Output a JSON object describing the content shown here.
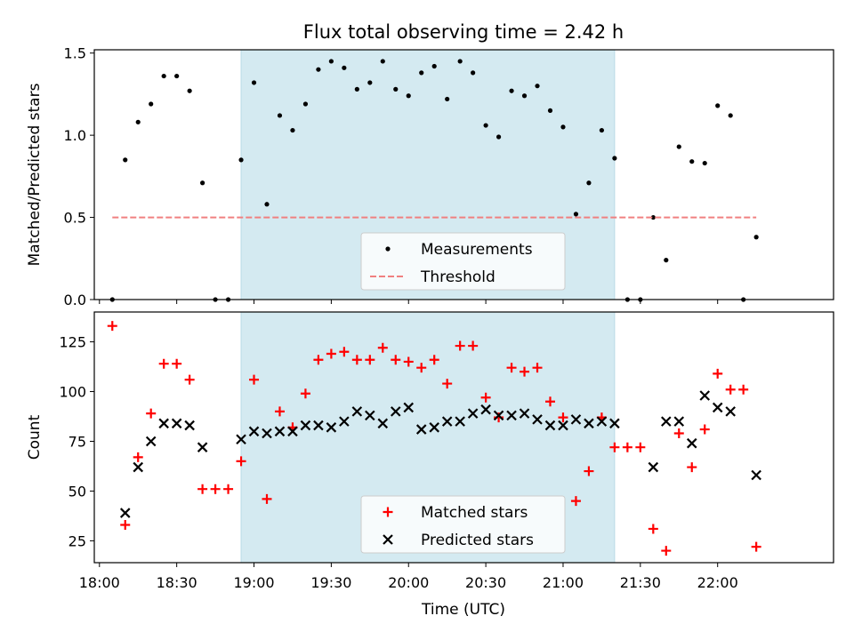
{
  "chart_data": {
    "type": "scatter",
    "title": "Flux total observing time = 2.42 h",
    "xlabel": "Time (UTC)",
    "x_range": [
      "17:58",
      "22:45"
    ],
    "x_ticks": [
      "18:00",
      "18:30",
      "19:00",
      "19:30",
      "20:00",
      "20:30",
      "21:00",
      "21:30",
      "22:00"
    ],
    "shaded_interval": [
      "18:55",
      "21:20"
    ],
    "shade_color": "#d4eaf1",
    "times": [
      "18:05",
      "18:10",
      "18:15",
      "18:20",
      "18:25",
      "18:30",
      "18:35",
      "18:40",
      "18:45",
      "18:50",
      "18:55",
      "19:00",
      "19:05",
      "19:10",
      "19:15",
      "19:20",
      "19:25",
      "19:30",
      "19:35",
      "19:40",
      "19:45",
      "19:50",
      "19:55",
      "20:00",
      "20:05",
      "20:10",
      "20:15",
      "20:20",
      "20:25",
      "20:30",
      "20:35",
      "20:40",
      "20:45",
      "20:50",
      "20:55",
      "21:00",
      "21:05",
      "21:10",
      "21:15",
      "21:20",
      "21:25",
      "21:30",
      "21:35",
      "21:40",
      "21:45",
      "21:50",
      "21:55",
      "22:00",
      "22:05",
      "22:10",
      "22:15"
    ],
    "panels": [
      {
        "ylabel": "Matched/Predicted stars",
        "ylim": [
          0,
          1.52
        ],
        "y_ticks": [
          "0.0",
          "0.5",
          "1.0",
          "1.5"
        ],
        "legend_position": "lower-center",
        "series": [
          {
            "name": "Measurements",
            "marker": "dot",
            "color": "#000000",
            "values": [
              0.0,
              0.85,
              1.08,
              1.19,
              1.36,
              1.36,
              1.27,
              0.71,
              0.0,
              0.0,
              0.85,
              1.32,
              0.58,
              1.12,
              1.03,
              1.19,
              1.4,
              1.45,
              1.41,
              1.28,
              1.32,
              1.45,
              1.28,
              1.24,
              1.38,
              1.42,
              1.22,
              1.45,
              1.38,
              1.06,
              0.99,
              1.27,
              1.24,
              1.3,
              1.15,
              1.05,
              0.52,
              0.71,
              1.03,
              0.86,
              0.0,
              0.0,
              0.5,
              0.24,
              0.93,
              0.84,
              0.83,
              1.18,
              1.12,
              0.0,
              0.38
            ]
          },
          {
            "name": "Threshold",
            "marker": "dashed-line",
            "color": "#f08080",
            "values": [
              0.5,
              0.5
            ]
          }
        ]
      },
      {
        "ylabel": "Count",
        "ylim": [
          14,
          140
        ],
        "y_ticks": [
          "25",
          "50",
          "75",
          "100",
          "125"
        ],
        "legend_position": "lower-center",
        "series": [
          {
            "name": "Matched stars",
            "marker": "plus",
            "color": "#ff0000",
            "values": [
              133,
              33,
              67,
              89,
              114,
              114,
              106,
              51,
              51,
              51,
              65,
              106,
              46,
              90,
              82,
              99,
              116,
              119,
              120,
              116,
              116,
              122,
              116,
              115,
              112,
              116,
              104,
              123,
              123,
              97,
              87,
              112,
              110,
              112,
              95,
              87,
              45,
              60,
              87,
              72,
              72,
              72,
              31,
              20,
              79,
              62,
              81,
              109,
              101,
              101,
              22
            ]
          },
          {
            "name": "Predicted stars",
            "marker": "x",
            "color": "#000000",
            "values": [
              null,
              39,
              62,
              75,
              84,
              84,
              83,
              72,
              null,
              null,
              76,
              80,
              79,
              80,
              80,
              83,
              83,
              82,
              85,
              90,
              88,
              84,
              90,
              92,
              81,
              82,
              85,
              85,
              89,
              91,
              88,
              88,
              89,
              86,
              83,
              83,
              86,
              84,
              85,
              84,
              null,
              null,
              62,
              85,
              85,
              74,
              98,
              92,
              90,
              null,
              58
            ]
          }
        ]
      }
    ]
  }
}
